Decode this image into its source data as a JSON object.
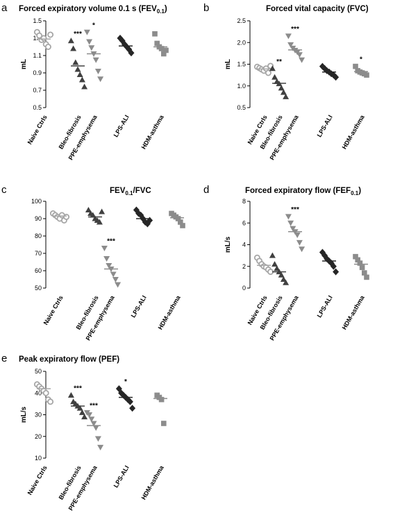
{
  "colors": {
    "naive": "#a6a6a6",
    "bleo": "#404040",
    "ppe": "#8c8c8c",
    "lps": "#262626",
    "hdm": "#8c8c8c"
  },
  "chart_data": [
    {
      "panel_label": "a",
      "type": "scatter",
      "title_main": "Forced expiratory volume 0.1 s (FEV",
      "title_sub": "0.1",
      "title_end": ")",
      "ylabel": "mL",
      "ylim": [
        0.5,
        1.5
      ],
      "yticks": [
        0.5,
        0.7,
        0.9,
        1.1,
        1.3,
        1.5
      ],
      "tick_decimals": 1,
      "categories": [
        "Naive Ctrls",
        "Bleo-fibrosis",
        "PPE-emphysema",
        "LPS-ALI",
        "HDM-asthma"
      ],
      "markers": [
        "circle-open",
        "triangle",
        "triangle-down",
        "diamond",
        "square"
      ],
      "significance": [
        "",
        "***",
        "*",
        "",
        ""
      ],
      "means": [
        1.29,
        0.98,
        1.12,
        1.21,
        1.2
      ],
      "points": [
        [
          1.37,
          1.33,
          1.28,
          1.3,
          1.23,
          1.2,
          1.34
        ],
        [
          1.27,
          1.18,
          1.02,
          0.94,
          0.88,
          0.82,
          0.74
        ],
        [
          1.37,
          1.26,
          1.19,
          1.12,
          1.05,
          0.92,
          0.83
        ],
        [
          1.3,
          1.27,
          1.23,
          1.2,
          1.17,
          1.13
        ],
        [
          1.35,
          1.24,
          1.2,
          1.18,
          1.12,
          1.16
        ]
      ]
    },
    {
      "panel_label": "b",
      "type": "scatter",
      "title_main": "Forced vital capacity (FVC)",
      "ylabel": "mL",
      "ylim": [
        0.5,
        2.5
      ],
      "yticks": [
        0.5,
        1.0,
        1.5,
        2.0,
        2.5
      ],
      "tick_decimals": 1,
      "categories": [
        "Naive Ctrls",
        "Bleo-fibrosis",
        "PPE-emphysema",
        "LPS-ALI",
        "HDM-asthma"
      ],
      "markers": [
        "circle-open",
        "triangle",
        "triangle-down",
        "diamond",
        "square"
      ],
      "significance": [
        "",
        "**",
        "***",
        "",
        "*"
      ],
      "means": [
        1.39,
        1.06,
        1.83,
        1.32,
        1.33
      ],
      "points": [
        [
          1.44,
          1.41,
          1.38,
          1.35,
          1.4,
          1.3,
          1.46
        ],
        [
          1.4,
          1.2,
          1.1,
          1.05,
          0.95,
          0.85,
          0.75
        ],
        [
          2.15,
          1.95,
          1.87,
          1.82,
          1.78,
          1.72,
          1.6
        ],
        [
          1.45,
          1.4,
          1.35,
          1.32,
          1.28,
          1.25,
          1.2
        ],
        [
          1.45,
          1.35,
          1.32,
          1.3,
          1.28,
          1.25
        ]
      ]
    },
    {
      "panel_label": "c",
      "type": "scatter",
      "title_main": "FEV",
      "title_sub": "0.1",
      "title_end": "/FVC",
      "ylabel": "",
      "ylim": [
        50,
        100
      ],
      "yticks": [
        50,
        60,
        70,
        80,
        90,
        100
      ],
      "tick_decimals": 0,
      "categories": [
        "Naive Ctrls",
        "Bleo-fibrosis",
        "PPE-emphysema",
        "LPS-ALI",
        "HDM-asthma"
      ],
      "markers": [
        "circle-open",
        "triangle",
        "triangle-down",
        "diamond",
        "square"
      ],
      "significance": [
        "",
        "",
        "***",
        "",
        ""
      ],
      "means": [
        91.5,
        91.0,
        61.0,
        90.0,
        90.5
      ],
      "points": [
        [
          93,
          92,
          91,
          90,
          92,
          89,
          91
        ],
        [
          95,
          93,
          92,
          90,
          89,
          88,
          94
        ],
        [
          73,
          67,
          63,
          61,
          58,
          55,
          52
        ],
        [
          95,
          93,
          92,
          90,
          88,
          87,
          89
        ],
        [
          93,
          92,
          91,
          90,
          88,
          86
        ]
      ]
    },
    {
      "panel_label": "d",
      "type": "scatter",
      "title_main": "Forced expiratory flow (FEF",
      "title_sub": "0.1",
      "title_end": ")",
      "ylabel": "mL/s",
      "ylim": [
        0,
        8
      ],
      "yticks": [
        0,
        2,
        4,
        6,
        8
      ],
      "tick_decimals": 0,
      "categories": [
        "Naive Ctrls",
        "Bleo-fibrosis",
        "PPE-emphysema",
        "LPS-ALI",
        "HDM-asthma"
      ],
      "markers": [
        "circle-open",
        "triangle",
        "triangle-down",
        "diamond",
        "square"
      ],
      "significance": [
        "",
        "",
        "***",
        "",
        ""
      ],
      "means": [
        2.1,
        1.5,
        5.2,
        2.5,
        2.2
      ],
      "points": [
        [
          2.8,
          2.5,
          2.2,
          2.0,
          1.9,
          1.7,
          1.5
        ],
        [
          3.0,
          2.2,
          1.8,
          1.5,
          1.2,
          0.8,
          0.5
        ],
        [
          6.6,
          6.0,
          5.5,
          5.2,
          4.9,
          4.2,
          3.6
        ],
        [
          3.3,
          3.0,
          2.7,
          2.5,
          2.3,
          2.0,
          1.5
        ],
        [
          2.9,
          2.6,
          2.3,
          1.9,
          1.4,
          1.0
        ]
      ]
    },
    {
      "panel_label": "e",
      "type": "scatter",
      "title_main": "Peak expiratory flow (PEF)",
      "ylabel": "mL/s",
      "ylim": [
        10,
        50
      ],
      "yticks": [
        10,
        20,
        30,
        40,
        50
      ],
      "tick_decimals": 0,
      "categories": [
        "Naive Ctrls",
        "Bleo-fibrosis",
        "PPE-emphysema",
        "LPS-ALI",
        "HDM-asthma"
      ],
      "markers": [
        "circle-open",
        "triangle",
        "triangle-down",
        "diamond",
        "square"
      ],
      "significance": [
        "",
        "***",
        "***",
        "*",
        ""
      ],
      "means": [
        42.0,
        34.0,
        25.0,
        38.0,
        37.5
      ],
      "points": [
        [
          44,
          43,
          42,
          41,
          40,
          37,
          36
        ],
        [
          39,
          36,
          35,
          34,
          33,
          31,
          29
        ],
        [
          31,
          30,
          28,
          26,
          24,
          19,
          15
        ],
        [
          42,
          40,
          39,
          38,
          37,
          36,
          33
        ],
        [
          39,
          38,
          37,
          26
        ]
      ]
    }
  ]
}
